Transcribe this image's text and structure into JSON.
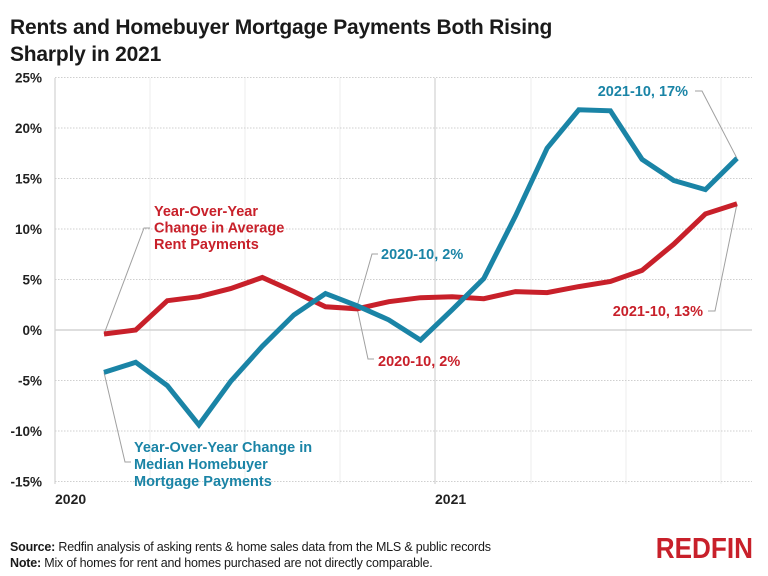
{
  "title": "Rents and Homebuyer Mortgage Payments Both Rising Sharply in 2021",
  "footer": {
    "source_label": "Source:",
    "source_text": "Redfin analysis of asking rents & home sales data from the MLS & public records",
    "note_label": "Note:",
    "note_text": "Mix of homes for rent and homes purchased are not directly comparable."
  },
  "logo": "REDFIN",
  "colors": {
    "rent": "#c8202a",
    "mortgage": "#1a84a6",
    "grid": "#d9d9d9",
    "leader": "#a0a0a0"
  },
  "annotations": {
    "rent_series": [
      "Year-Over-Year",
      "Change in Average",
      "Rent Payments"
    ],
    "mortgage_series": [
      "Year-Over-Year Change in",
      "Median Homebuyer",
      "Mortgage Payments"
    ],
    "mortgage_2020_10": "2020-10, 2%",
    "rent_2020_10": "2020-10, 2%",
    "mortgage_2021_10": "2021-10, 17%",
    "rent_2021_10": "2021-10, 13%"
  },
  "chart_data": {
    "type": "line",
    "title": "Rents and Homebuyer Mortgage Payments Both Rising Sharply in 2021",
    "xlabel": "",
    "ylabel": "",
    "x": [
      "2020-02",
      "2020-03",
      "2020-04",
      "2020-05",
      "2020-06",
      "2020-07",
      "2020-08",
      "2020-09",
      "2020-10",
      "2020-11",
      "2020-12",
      "2021-01",
      "2021-02",
      "2021-03",
      "2021-04",
      "2021-05",
      "2021-06",
      "2021-07",
      "2021-08",
      "2021-09",
      "2021-10"
    ],
    "x_tick_labels": [
      "2020",
      "2021"
    ],
    "y_tick_labels": [
      "25%",
      "20%",
      "15%",
      "10%",
      "5%",
      "0%",
      "-5%",
      "-10%",
      "-15%"
    ],
    "ylim": [
      -15,
      25
    ],
    "grid": true,
    "legend": "inline annotations",
    "series": [
      {
        "name": "Year-Over-Year Change in Average Rent Payments",
        "color": "#c8202a",
        "values": [
          -0.4,
          0.0,
          2.9,
          3.3,
          4.1,
          5.2,
          3.8,
          2.3,
          2.1,
          2.8,
          3.2,
          3.3,
          3.1,
          3.8,
          3.7,
          4.3,
          4.8,
          5.9,
          8.5,
          11.5,
          12.5
        ]
      },
      {
        "name": "Year-Over-Year Change in Median Homebuyer Mortgage Payments",
        "color": "#1a84a6",
        "values": [
          -4.2,
          -3.2,
          -5.5,
          -9.4,
          -5.1,
          -1.6,
          1.5,
          3.6,
          2.4,
          1.0,
          -1.0,
          2.0,
          5.1,
          11.3,
          18.0,
          21.8,
          21.7,
          16.9,
          14.8,
          13.9,
          17.0
        ]
      }
    ]
  }
}
